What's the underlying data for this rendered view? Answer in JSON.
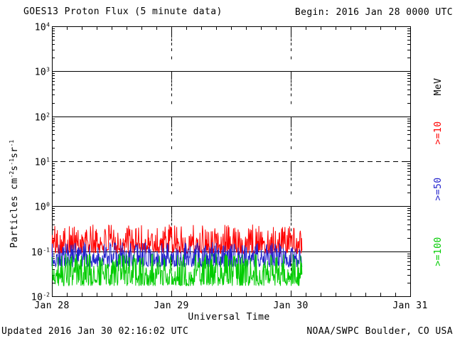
{
  "header": {
    "title": "GOES13 Proton Flux (5 minute data)",
    "begin_label": "Begin: 2016 Jan 28 0000 UTC"
  },
  "footer": {
    "updated": "Updated 2016 Jan 30 02:16:02 UTC",
    "source": "NOAA/SWPC Boulder, CO USA"
  },
  "chart_data": {
    "type": "line",
    "title": "GOES13 Proton Flux (5 minute data)",
    "xlabel": "Universal Time",
    "ylabel": "Particles cm-2s-1sr-1",
    "ylabel_parts": [
      [
        "t",
        "Particles cm"
      ],
      [
        "sup",
        "-2"
      ],
      [
        "t",
        "s"
      ],
      [
        "sup",
        "-1"
      ],
      [
        "t",
        "sr"
      ],
      [
        "sup",
        "-1"
      ]
    ],
    "y_scale": "log10",
    "ylim_exponents": [
      -2,
      4
    ],
    "y_tick_exponents": [
      4,
      3,
      2,
      1,
      0,
      -1,
      -2
    ],
    "x_ticks": [
      "Jan 28",
      "Jan 29",
      "Jan 30",
      "Jan 31"
    ],
    "x_total_hours": 72,
    "x_minor_tick_hours": 3,
    "sample_interval_minutes": 5,
    "data_end_hours": 50.25,
    "horizontal_gridlines": [
      {
        "at_exponent": 3,
        "style": "solid"
      },
      {
        "at_exponent": 2,
        "style": "solid"
      },
      {
        "at_exponent": 1,
        "style": "dashed"
      },
      {
        "at_exponent": 0,
        "style": "solid"
      },
      {
        "at_exponent": -1,
        "style": "solid"
      }
    ],
    "vertical_day_line_indices": [
      1,
      2
    ],
    "right_axis_unit": "MeV",
    "axis_color": "#000000",
    "series": [
      {
        "name": "protons_ge_10MeV",
        "label": ">=10",
        "color": "#FF0000",
        "typical": 0.14,
        "min": 0.09,
        "max": 0.4,
        "base_log10": -1.05,
        "span_log10": 0.65,
        "shape": 1.7,
        "seed": 101
      },
      {
        "name": "protons_ge_50MeV",
        "label": ">=50",
        "color": "#2222CC",
        "typical": 0.085,
        "min": 0.045,
        "max": 0.16,
        "base_log10": -1.35,
        "span_log10": 0.55,
        "shape": 1.7,
        "seed": 202
      },
      {
        "name": "protons_ge_100MeV",
        "label": ">=100",
        "color": "#00CC00",
        "typical": 0.04,
        "min": 0.017,
        "max": 0.09,
        "base_log10": -1.77,
        "span_log10": 0.72,
        "shape": 1.7,
        "seed": 303
      }
    ]
  }
}
